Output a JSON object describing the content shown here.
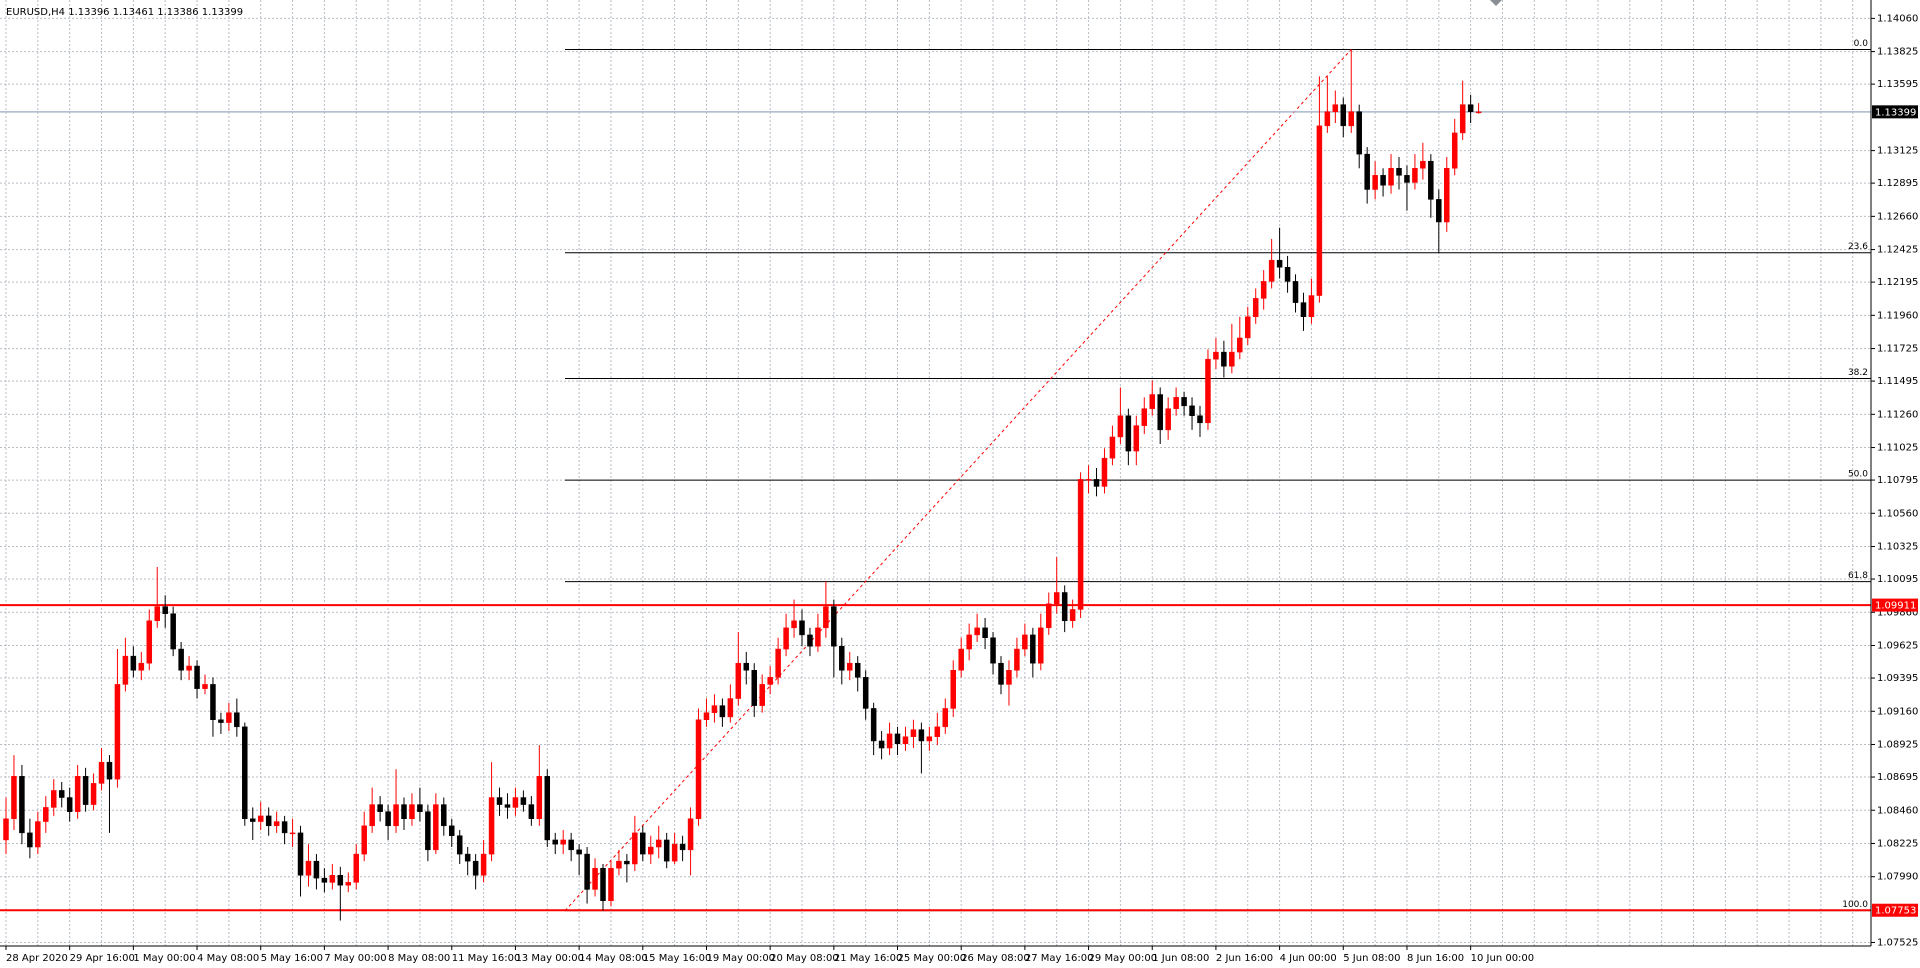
{
  "chart_data": {
    "type": "candlestick",
    "title": "EURUSD,H4  1.13396 1.13461 1.13386 1.13399",
    "categories": [
      "28 Apr 2020",
      null,
      null,
      null,
      null,
      null,
      null,
      null,
      "29 Apr 16:00",
      null,
      null,
      null,
      null,
      null,
      null,
      null,
      "1 May 00:00",
      null,
      null,
      null,
      null,
      null,
      null,
      null,
      "4 May 08:00",
      null,
      null,
      null,
      null,
      null,
      null,
      null,
      "5 May 16:00",
      null,
      null,
      null,
      null,
      null,
      null,
      null,
      "7 May 00:00",
      null,
      null,
      null,
      null,
      null,
      null,
      null,
      "8 May 08:00",
      null,
      null,
      null,
      null,
      null,
      null,
      null,
      "11 May 16:00",
      null,
      null,
      null,
      null,
      null,
      null,
      null,
      "13 May 00:00",
      null,
      null,
      null,
      null,
      null,
      null,
      null,
      "14 May 08:00",
      null,
      null,
      null,
      null,
      null,
      null,
      null,
      "15 May 16:00",
      null,
      null,
      null,
      null,
      null,
      null,
      null,
      "19 May 00:00",
      null,
      null,
      null,
      null,
      null,
      null,
      null,
      "20 May 08:00",
      null,
      null,
      null,
      null,
      null,
      null,
      null,
      "21 May 16:00",
      null,
      null,
      null,
      null,
      null,
      null,
      null,
      "25 May 00:00",
      null,
      null,
      null,
      null,
      null,
      null,
      null,
      "26 May 08:00",
      null,
      null,
      null,
      null,
      null,
      null,
      null,
      "27 May 16:00",
      null,
      null,
      null,
      null,
      null,
      null,
      null,
      "29 May 00:00",
      null,
      null,
      null,
      null,
      null,
      null,
      null,
      "1 Jun 08:00",
      null,
      null,
      null,
      null,
      null,
      null,
      null,
      "2 Jun 16:00",
      null,
      null,
      null,
      null,
      null,
      null,
      null,
      "4 Jun 00:00",
      null,
      null,
      null,
      null,
      null,
      null,
      null,
      "5 Jun 08:00",
      null,
      null,
      null,
      null,
      null,
      null,
      null,
      "8 Jun 16:00",
      null,
      null,
      null,
      null,
      null,
      null,
      null,
      "10 Jun 00:00",
      null
    ],
    "open": [
      1.0825,
      1.084,
      1.087,
      1.083,
      1.082,
      1.0838,
      1.0848,
      1.086,
      1.0855,
      1.0845,
      1.087,
      1.085,
      1.0865,
      1.088,
      1.0868,
      1.0935,
      1.0955,
      1.0945,
      1.095,
      1.098,
      1.099,
      1.0985,
      1.096,
      1.0945,
      1.0948,
      1.0932,
      1.0935,
      1.091,
      1.0908,
      1.0915,
      1.0905,
      1.084,
      1.0838,
      1.0842,
      1.0835,
      1.0838,
      1.083,
      1.083,
      1.08,
      1.081,
      1.0798,
      1.0795,
      1.08,
      1.0793,
      1.0795,
      1.0815,
      1.0835,
      1.085,
      1.0845,
      1.0835,
      1.085,
      1.084,
      1.085,
      1.0845,
      1.0818,
      1.085,
      1.0835,
      1.0828,
      1.0815,
      1.081,
      1.08,
      1.0815,
      1.0855,
      1.085,
      1.0848,
      1.0855,
      1.085,
      1.084,
      1.087,
      1.0825,
      1.0822,
      1.0825,
      1.0818,
      1.0815,
      1.079,
      1.0805,
      1.0782,
      1.0805,
      1.081,
      1.0808,
      1.083,
      1.0815,
      1.082,
      1.0825,
      1.081,
      1.0822,
      1.0818,
      1.084,
      1.091,
      1.0915,
      1.092,
      1.0912,
      1.0925,
      1.095,
      1.0945,
      1.092,
      1.0935,
      1.094,
      1.096,
      1.0975,
      1.098,
      1.097,
      1.0962,
      1.0975,
      1.099,
      1.0962,
      1.0945,
      1.095,
      1.094,
      1.0918,
      1.0895,
      1.089,
      1.09,
      1.0893,
      1.0898,
      1.0903,
      1.0895,
      1.0898,
      1.0905,
      1.0918,
      1.0945,
      1.096,
      1.097,
      1.0975,
      1.0968,
      1.095,
      1.0935,
      1.0945,
      1.096,
      1.097,
      1.095,
      1.0975,
      1.0992,
      1.1,
      1.098,
      1.0988,
      1.108,
      1.108,
      1.1075,
      1.1095,
      1.111,
      1.1125,
      1.11,
      1.1118,
      1.113,
      1.114,
      1.1115,
      1.113,
      1.1138,
      1.1132,
      1.1125,
      1.112,
      1.1165,
      1.117,
      1.116,
      1.117,
      1.118,
      1.1195,
      1.1208,
      1.122,
      1.1235,
      1.123,
      1.122,
      1.1205,
      1.1195,
      1.121,
      1.133,
      1.134,
      1.1345,
      1.133,
      1.134,
      1.131,
      1.1285,
      1.1295,
      1.1288,
      1.13,
      1.1295,
      1.129,
      1.13,
      1.1305,
      1.1278,
      1.1262,
      1.13,
      1.1325,
      1.1345,
      1.13396
    ],
    "high": [
      1.0855,
      1.0885,
      1.0878,
      1.084,
      1.0845,
      1.0856,
      1.0868,
      1.0866,
      1.0862,
      1.0878,
      1.0876,
      1.0872,
      1.089,
      1.0885,
      1.096,
      1.0968,
      1.0962,
      1.0958,
      1.0988,
      1.1018,
      1.0998,
      1.099,
      1.0965,
      1.0955,
      1.0952,
      1.0942,
      1.094,
      1.0915,
      1.0922,
      1.0925,
      1.0908,
      1.0848,
      1.0852,
      1.0848,
      1.0845,
      1.0842,
      1.084,
      1.0835,
      1.0822,
      1.0815,
      1.0805,
      1.0808,
      1.0806,
      1.0802,
      1.0822,
      1.0845,
      1.0862,
      1.0856,
      1.085,
      1.0875,
      1.0855,
      1.0858,
      1.0862,
      1.085,
      1.0858,
      1.0855,
      1.084,
      1.0832,
      1.082,
      1.0815,
      1.0825,
      1.088,
      1.0862,
      1.0858,
      1.0862,
      1.086,
      1.0856,
      1.0892,
      1.0875,
      1.083,
      1.0832,
      1.083,
      1.0822,
      1.082,
      1.0812,
      1.0808,
      1.081,
      1.0818,
      1.0815,
      1.0842,
      1.0835,
      1.0828,
      1.0835,
      1.083,
      1.083,
      1.0828,
      1.0848,
      1.0918,
      1.0925,
      1.0928,
      1.0925,
      1.0935,
      1.0972,
      1.0958,
      1.095,
      1.0942,
      1.0948,
      1.0968,
      1.0985,
      1.0995,
      1.0988,
      1.0975,
      1.0985,
      1.1008,
      1.0995,
      1.0968,
      1.0958,
      1.0955,
      1.0945,
      1.0922,
      1.0902,
      1.0908,
      1.0905,
      1.0905,
      1.091,
      1.0908,
      1.0905,
      1.0915,
      1.0925,
      1.0952,
      1.0968,
      1.0978,
      1.0985,
      1.0982,
      1.0972,
      1.0955,
      1.0952,
      1.0968,
      1.0978,
      1.0975,
      1.0985,
      1.1,
      1.1025,
      1.1005,
      1.0995,
      1.1085,
      1.109,
      1.1088,
      1.1102,
      1.1118,
      1.1145,
      1.113,
      1.1125,
      1.1138,
      1.115,
      1.1145,
      1.1138,
      1.1145,
      1.1142,
      1.1138,
      1.1132,
      1.1172,
      1.118,
      1.1178,
      1.119,
      1.1195,
      1.1202,
      1.1215,
      1.1228,
      1.125,
      1.1258,
      1.1238,
      1.1225,
      1.1212,
      1.1222,
      1.1365,
      1.1365,
      1.1355,
      1.135,
      1.1384,
      1.1345,
      1.1315,
      1.1305,
      1.13,
      1.131,
      1.1308,
      1.1302,
      1.131,
      1.1318,
      1.131,
      1.1285,
      1.1308,
      1.1335,
      1.1362,
      1.1352,
      1.13461
    ],
    "low": [
      1.0815,
      1.0832,
      1.0822,
      1.0812,
      1.0815,
      1.083,
      1.0842,
      1.0848,
      1.0838,
      1.084,
      1.0845,
      1.0846,
      1.086,
      1.083,
      1.0862,
      1.093,
      1.094,
      1.0938,
      1.0945,
      1.0975,
      1.0975,
      1.0955,
      1.0938,
      1.0938,
      1.0925,
      1.0928,
      1.0898,
      1.09,
      1.0902,
      1.0898,
      1.0835,
      1.0825,
      1.0832,
      1.0828,
      1.083,
      1.0822,
      1.082,
      1.0785,
      1.0792,
      1.079,
      1.0788,
      1.079,
      1.0768,
      1.0788,
      1.079,
      1.081,
      1.083,
      1.0838,
      1.0825,
      1.083,
      1.0832,
      1.0835,
      1.0838,
      1.081,
      1.0815,
      1.0828,
      1.082,
      1.0808,
      1.08,
      1.079,
      1.0795,
      1.081,
      1.0842,
      1.084,
      1.0842,
      1.0845,
      1.0835,
      1.0835,
      1.082,
      1.0815,
      1.0815,
      1.081,
      1.08,
      1.078,
      1.0785,
      1.0775,
      1.0778,
      1.08,
      1.0795,
      1.0803,
      1.081,
      1.0808,
      1.0812,
      1.0805,
      1.0808,
      1.081,
      1.08,
      1.0835,
      1.0905,
      1.0908,
      1.0905,
      1.0908,
      1.092,
      1.0935,
      1.0912,
      1.0915,
      1.0928,
      1.0935,
      1.0955,
      1.0968,
      1.0962,
      1.0955,
      1.0958,
      1.0968,
      1.094,
      1.0935,
      1.0938,
      1.093,
      1.091,
      1.0885,
      1.0882,
      1.0885,
      1.0885,
      1.0888,
      1.089,
      1.0872,
      1.0888,
      1.0892,
      1.09,
      1.0912,
      1.094,
      1.0952,
      1.0965,
      1.096,
      1.0942,
      1.0928,
      1.092,
      1.094,
      1.0955,
      1.094,
      1.0945,
      1.097,
      1.0985,
      1.0972,
      1.0975,
      1.0982,
      1.107,
      1.1068,
      1.107,
      1.109,
      1.1105,
      1.109,
      1.109,
      1.1112,
      1.1125,
      1.1105,
      1.1108,
      1.1125,
      1.1125,
      1.1115,
      1.111,
      1.1115,
      1.1158,
      1.1152,
      1.1155,
      1.1165,
      1.1175,
      1.119,
      1.12,
      1.1215,
      1.1222,
      1.1212,
      1.1198,
      1.1185,
      1.119,
      1.1205,
      1.1325,
      1.1332,
      1.1322,
      1.1325,
      1.13,
      1.1275,
      1.1278,
      1.128,
      1.1282,
      1.1285,
      1.127,
      1.1285,
      1.1292,
      1.1265,
      1.124,
      1.1255,
      1.1295,
      1.132,
      1.1332,
      1.13386
    ],
    "close": [
      1.084,
      1.087,
      1.083,
      1.082,
      1.0838,
      1.0848,
      1.086,
      1.0855,
      1.0845,
      1.087,
      1.085,
      1.0865,
      1.088,
      1.0868,
      1.0935,
      1.0955,
      1.0945,
      1.095,
      1.098,
      1.099,
      1.0985,
      1.096,
      1.0945,
      1.0948,
      1.0932,
      1.0935,
      1.091,
      1.0908,
      1.0915,
      1.0905,
      1.084,
      1.0838,
      1.0842,
      1.0835,
      1.0838,
      1.083,
      1.083,
      1.08,
      1.081,
      1.0798,
      1.0795,
      1.08,
      1.0793,
      1.0795,
      1.0815,
      1.0835,
      1.085,
      1.0845,
      1.0835,
      1.085,
      1.084,
      1.085,
      1.0845,
      1.0818,
      1.085,
      1.0835,
      1.0828,
      1.0815,
      1.081,
      1.08,
      1.0815,
      1.0855,
      1.085,
      1.0848,
      1.0855,
      1.085,
      1.084,
      1.087,
      1.0825,
      1.0822,
      1.0825,
      1.0818,
      1.0815,
      1.079,
      1.0805,
      1.0782,
      1.0805,
      1.081,
      1.0808,
      1.083,
      1.0815,
      1.082,
      1.0825,
      1.081,
      1.0822,
      1.0818,
      1.084,
      1.091,
      1.0915,
      1.092,
      1.0912,
      1.0925,
      1.095,
      1.0945,
      1.092,
      1.0935,
      1.094,
      1.096,
      1.0975,
      1.098,
      1.097,
      1.0962,
      1.0975,
      1.099,
      1.0962,
      1.0945,
      1.095,
      1.094,
      1.0918,
      1.0895,
      1.089,
      1.09,
      1.0893,
      1.0898,
      1.0903,
      1.0895,
      1.0898,
      1.0905,
      1.0918,
      1.0945,
      1.096,
      1.097,
      1.0975,
      1.0968,
      1.095,
      1.0935,
      1.0945,
      1.096,
      1.097,
      1.095,
      1.0975,
      1.0992,
      1.1,
      1.098,
      1.0988,
      1.108,
      1.108,
      1.1075,
      1.1095,
      1.111,
      1.1125,
      1.11,
      1.1118,
      1.113,
      1.114,
      1.1115,
      1.113,
      1.1138,
      1.1132,
      1.1125,
      1.112,
      1.1165,
      1.117,
      1.116,
      1.117,
      1.118,
      1.1195,
      1.1208,
      1.122,
      1.1235,
      1.123,
      1.122,
      1.1205,
      1.1195,
      1.121,
      1.133,
      1.134,
      1.1345,
      1.133,
      1.134,
      1.131,
      1.1285,
      1.1295,
      1.1288,
      1.13,
      1.1295,
      1.129,
      1.13,
      1.1305,
      1.1278,
      1.1262,
      1.13,
      1.1325,
      1.1345,
      1.134,
      1.13399
    ],
    "up_color": "#ff0000",
    "down_color": "#000000",
    "ylim": [
      1.075,
      1.1419
    ],
    "yticks": [
      {
        "value": 1.1406,
        "label": "1.14060"
      },
      1.13825,
      1.13595,
      1.13125,
      1.12895,
      {
        "value": 1.1266,
        "label": "1.12660"
      },
      1.12425,
      1.12195,
      {
        "value": 1.1196,
        "label": "1.11960"
      },
      1.11725,
      1.11495,
      {
        "value": 1.1126,
        "label": "1.11260"
      },
      1.11025,
      1.10795,
      {
        "value": 1.1056,
        "label": "1.10560"
      },
      1.10325,
      1.10095,
      {
        "value": 1.0986,
        "label": "1.09860"
      },
      1.09625,
      1.09395,
      {
        "value": 1.0916,
        "label": "1.09160"
      },
      1.08925,
      1.08695,
      {
        "value": 1.0846,
        "label": "1.08460"
      },
      1.08225,
      {
        "value": 1.0799,
        "label": "1.07990"
      },
      1.07525
    ],
    "grid": true,
    "hlines": [
      {
        "value": 1.09911,
        "color": "#ff0000"
      },
      {
        "value": 1.07753,
        "color": "#ff0000"
      }
    ],
    "current_price": {
      "value": 1.13399,
      "color": "#a9b8cc"
    },
    "fibonacci": {
      "high": 1.1384,
      "low": 1.0775,
      "color": "#000000",
      "trend_color": "#ff0000",
      "levels": [
        {
          "value": 0,
          "label": "0.0"
        },
        23.6,
        38.2,
        {
          "value": 50,
          "label": "50.0"
        },
        61.8,
        {
          "value": 100,
          "label": "100.0"
        }
      ]
    }
  }
}
